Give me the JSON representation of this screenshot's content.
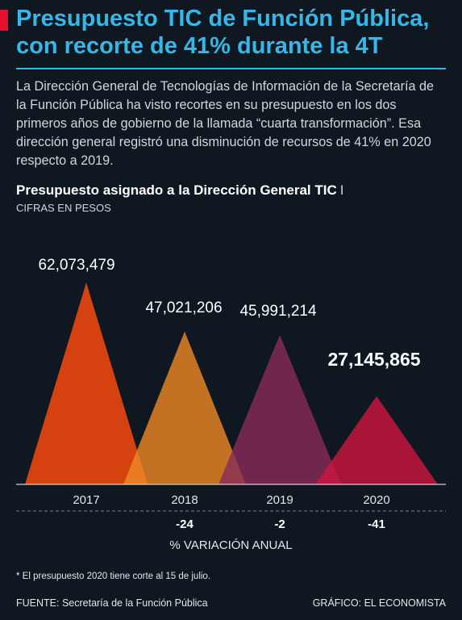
{
  "header": {
    "title": "Presupuesto TIC de Función Pública, con recorte de 41% durante la 4T",
    "intro": "La Dirección General de Tecnologías de Información de la Secretaría de la Función Pública ha visto recortes en su presupuesto en los dos primeros años de gobierno de la llamada “cuarta transformación”. Esa dirección general registró una disminución de recursos de 41% en 2020 respecto a 2019."
  },
  "colors": {
    "title": "#35b8e8",
    "accent": "#e5122d",
    "background": "#0f1721",
    "bar_2017": "#e0440f",
    "bar_2018": "#f08a24",
    "bar_2019": "#8a2a59",
    "bar_2020": "#d0153f"
  },
  "chart_data": {
    "type": "bar",
    "title": "Presupuesto asignado a la Dirección General TIC",
    "title_separator": "I",
    "subtitle": "CIFRAS EN PESOS",
    "mark_shape": "triangle",
    "categories": [
      "2017",
      "2018",
      "2019",
      "2020"
    ],
    "values": [
      62073479,
      47021206,
      45991214,
      27145865
    ],
    "value_labels": [
      "62,073,479",
      "47,021,206",
      "45,991,214",
      "27,145,865"
    ],
    "variation": [
      "",
      "-24",
      "-2",
      "-41"
    ],
    "variation_label": "% VARIACIÓN ANUAL",
    "ylim": [
      0,
      62073479
    ]
  },
  "footer": {
    "footnote": "* El presupuesto 2020 tiene corte al 15 de julio.",
    "source": "FUENTE: Secretaría de la Función Pública",
    "credit": "GRÁFICO: EL ECONOMISTA"
  }
}
